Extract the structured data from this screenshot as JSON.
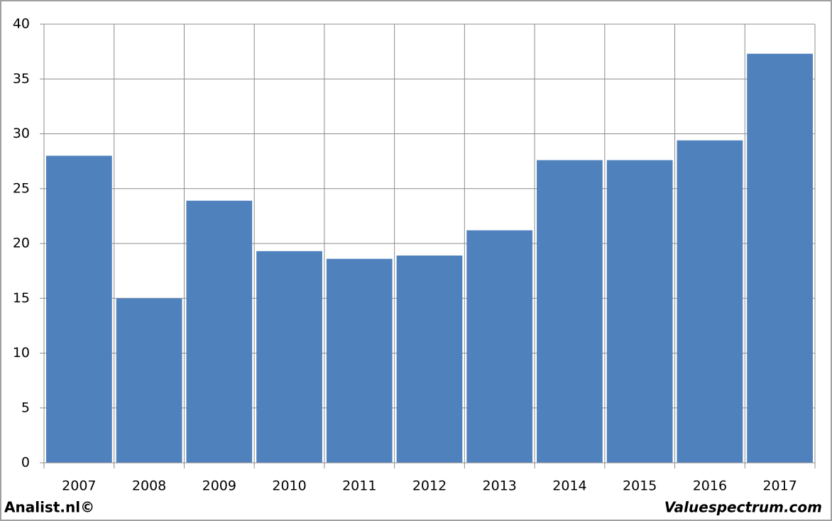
{
  "chart_data": {
    "type": "bar",
    "categories": [
      "2007",
      "2008",
      "2009",
      "2010",
      "2011",
      "2012",
      "2013",
      "2014",
      "2015",
      "2016",
      "2017"
    ],
    "values": [
      28.0,
      15.0,
      23.9,
      19.3,
      18.6,
      18.9,
      21.2,
      27.6,
      27.6,
      29.4,
      37.3
    ],
    "color": "#4f81bd",
    "ylim": [
      0,
      40
    ],
    "yticks": [
      0,
      5,
      10,
      15,
      20,
      25,
      30,
      35,
      40
    ],
    "grid": true,
    "credits": [
      "Analist.nl©",
      "Valuespectrum.com"
    ]
  }
}
